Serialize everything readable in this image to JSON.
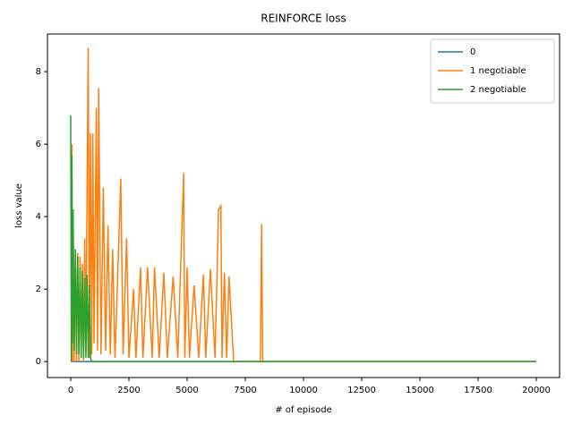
{
  "chart_data": {
    "type": "line",
    "title": "REINFORCE loss",
    "x_label": "# of episode",
    "y_label": "loss value",
    "x": [
      0,
      25,
      50,
      75,
      100,
      150,
      200,
      250,
      300,
      350,
      400,
      450,
      500,
      550,
      600,
      650,
      700,
      750,
      800,
      850,
      900,
      950,
      1000,
      1100,
      1150,
      1200,
      1300,
      1400,
      1500,
      1600,
      1700,
      1800,
      1900,
      2000,
      2150,
      2250,
      2400,
      2500,
      2700,
      2800,
      3000,
      3100,
      3300,
      3500,
      3600,
      3800,
      4000,
      4150,
      4400,
      4600,
      4850,
      4900,
      5000,
      5100,
      5300,
      5500,
      5700,
      5800,
      6000,
      6200,
      6350,
      6450,
      6500,
      6600,
      6700,
      6800,
      7000,
      8150,
      8200,
      8250,
      10000,
      20000
    ],
    "series": [
      {
        "name": "0",
        "color": "#1f77b4",
        "values": [
          0,
          0,
          0,
          0,
          0,
          0,
          0,
          0,
          0,
          0,
          0,
          0,
          0,
          0,
          0,
          0,
          0,
          0,
          0,
          0,
          0,
          0,
          0,
          0,
          0,
          0,
          0,
          0,
          0,
          0,
          0,
          0,
          0,
          0,
          0,
          0,
          0,
          0,
          0,
          0,
          0,
          0,
          0,
          0,
          0,
          0,
          0,
          0,
          0,
          0,
          0,
          0,
          0,
          0,
          0,
          0,
          0,
          0,
          0,
          0,
          0,
          0,
          0,
          0,
          0,
          0,
          0,
          0,
          0,
          0,
          0,
          0
        ]
      },
      {
        "name": "1 negotiable",
        "color": "#ff7f0e",
        "values": [
          0,
          0,
          6.0,
          0,
          4.2,
          0,
          2.8,
          0,
          3.0,
          0,
          2.9,
          0.2,
          2.7,
          0,
          3.4,
          0.3,
          4.5,
          8.65,
          0.1,
          6.3,
          0.2,
          6.3,
          0.5,
          7.0,
          0.3,
          7.55,
          0.2,
          4.8,
          0.3,
          3.75,
          0.2,
          3.1,
          0.1,
          2.0,
          5.05,
          0.2,
          3.4,
          0.1,
          2.0,
          0.1,
          2.6,
          0.1,
          2.6,
          0.1,
          2.6,
          0.1,
          2.45,
          0.1,
          2.35,
          0.1,
          5.2,
          0.1,
          2.6,
          0.1,
          2.1,
          0.1,
          2.4,
          0.1,
          2.55,
          0.1,
          4.2,
          4.3,
          0.1,
          2.45,
          0.1,
          2.35,
          0,
          0,
          3.8,
          0,
          0,
          0
        ]
      },
      {
        "name": "2 negotiable",
        "color": "#2ca02c",
        "values": [
          6.8,
          0,
          5.7,
          0.5,
          4.2,
          0.3,
          3.1,
          0.2,
          2.9,
          0.2,
          2.6,
          0.1,
          2.5,
          0.1,
          2.3,
          0.1,
          2.4,
          0.1,
          2.1,
          0.1,
          0,
          0,
          0,
          0,
          0,
          0,
          0,
          0,
          0,
          0,
          0,
          0,
          0,
          0,
          0,
          0,
          0,
          0,
          0,
          0,
          0,
          0,
          0,
          0,
          0,
          0,
          0,
          0,
          0,
          0,
          0,
          0,
          0,
          0,
          0,
          0,
          0,
          0,
          0,
          0,
          0,
          0,
          0,
          0,
          0,
          0,
          0,
          0,
          0,
          0,
          0,
          0
        ]
      }
    ],
    "xlim": [
      -1000,
      21000
    ],
    "ylim": [
      -0.44,
      9.04
    ],
    "xticks": [
      0,
      2500,
      5000,
      7500,
      10000,
      12500,
      15000,
      17500,
      20000
    ],
    "yticks": [
      0,
      2,
      4,
      6,
      8
    ],
    "legend": "upper right"
  }
}
